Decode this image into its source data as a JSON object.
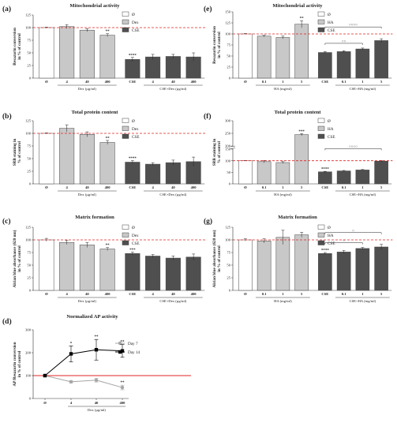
{
  "chart_data": [
    {
      "id": "a",
      "panel": "(a)",
      "type": "bar",
      "title": "Mitochondrial activity",
      "ylabel": [
        "Resazurin conversion",
        "in % of control"
      ],
      "yticks": [
        0,
        25,
        50,
        75,
        100,
        125
      ],
      "ylim": [
        0,
        125
      ],
      "reference_line": 100,
      "categories": [
        "Ø",
        "4",
        "40",
        "400",
        "CSE",
        "4",
        "40",
        "400"
      ],
      "values": [
        100,
        102,
        95,
        85,
        37,
        42,
        43,
        42
      ],
      "errors": [
        1,
        4,
        3,
        3,
        4,
        5,
        4,
        8
      ],
      "series_index": [
        0,
        1,
        1,
        1,
        2,
        2,
        2,
        2
      ],
      "annotations": [
        {
          "index": 3,
          "text": "**"
        },
        {
          "index": 4,
          "text": "****"
        }
      ],
      "groups": [
        {
          "label": "Dex (µg/ml)",
          "from": 1,
          "to": 3
        },
        {
          "label": "CSE+Dex (µg/ml)",
          "from": 5,
          "to": 7
        }
      ],
      "legend": [
        "Ø",
        "Dex",
        "CSE"
      ],
      "colors": [
        "#ffffff",
        "#c8c8c8",
        "#4f4f4f"
      ]
    },
    {
      "id": "b",
      "panel": "(b)",
      "type": "bar",
      "title": "Total protein content",
      "ylabel": [
        "SRB staining in",
        "% of control"
      ],
      "yticks": [
        0,
        25,
        50,
        75,
        100,
        125
      ],
      "ylim": [
        0,
        125
      ],
      "reference_line": 100,
      "categories": [
        "Ø",
        "4",
        "40",
        "400",
        "CSE",
        "4",
        "40",
        "400"
      ],
      "values": [
        100,
        110,
        98,
        82,
        43,
        39,
        42,
        44
      ],
      "errors": [
        1,
        7,
        5,
        4,
        3,
        3,
        5,
        9
      ],
      "series_index": [
        0,
        1,
        1,
        1,
        2,
        2,
        2,
        2
      ],
      "annotations": [
        {
          "index": 3,
          "text": "**"
        },
        {
          "index": 4,
          "text": "****"
        }
      ],
      "groups": [
        {
          "label": "Dex (µg/ml)",
          "from": 1,
          "to": 3
        },
        {
          "label": "CSE+Dex (µg/ml)",
          "from": 5,
          "to": 7
        }
      ],
      "legend": [
        "Ø",
        "Dex",
        "CSE"
      ],
      "colors": [
        "#ffffff",
        "#c8c8c8",
        "#4f4f4f"
      ]
    },
    {
      "id": "c",
      "panel": "(c)",
      "type": "bar",
      "title": "Matrix formation",
      "ylabel": [
        "Alcian blue absorbance (620 nm)",
        "in % of control"
      ],
      "yticks": [
        0,
        25,
        50,
        75,
        100,
        125
      ],
      "ylim": [
        0,
        125
      ],
      "reference_line": 100,
      "categories": [
        "Ø",
        "4",
        "40",
        "400",
        "CSE",
        "4",
        "40",
        "400"
      ],
      "values": [
        100,
        95,
        90,
        82,
        73,
        68,
        64,
        66
      ],
      "errors": [
        3,
        4,
        5,
        3,
        3,
        3,
        4,
        6
      ],
      "series_index": [
        0,
        1,
        1,
        1,
        2,
        2,
        2,
        2
      ],
      "annotations": [
        {
          "index": 3,
          "text": "**"
        },
        {
          "index": 4,
          "text": "***"
        }
      ],
      "groups": [
        {
          "label": "Dex (µg/ml)",
          "from": 1,
          "to": 3
        },
        {
          "label": "CSE+Dex (µg/ml)",
          "from": 5,
          "to": 7
        }
      ],
      "legend": [
        "Ø",
        "Dex",
        "CSE"
      ],
      "colors": [
        "#ffffff",
        "#c8c8c8",
        "#4f4f4f"
      ]
    },
    {
      "id": "e",
      "panel": "(e)",
      "type": "bar",
      "title": "Mitochondrial activity",
      "ylabel": [
        "Resazurin conversion",
        "in % of control"
      ],
      "yticks": [
        0,
        25,
        50,
        75,
        100,
        125,
        150
      ],
      "ylim": [
        0,
        150
      ],
      "reference_line": 100,
      "categories": [
        "Ø",
        "0.1",
        "1",
        "5",
        "CSE",
        "0.1",
        "1",
        "5"
      ],
      "values": [
        100,
        95,
        92,
        122,
        58,
        60,
        66,
        85
      ],
      "errors": [
        1,
        2,
        3,
        8,
        2,
        2,
        2,
        4
      ],
      "series_index": [
        0,
        1,
        1,
        1,
        2,
        2,
        2,
        2
      ],
      "annotations": [
        {
          "index": 3,
          "text": "**"
        }
      ],
      "brackets": [
        {
          "from": 4,
          "to": 7,
          "text": "○○○○"
        },
        {
          "from": 4,
          "to": 6,
          "text": "○○"
        }
      ],
      "groups": [
        {
          "label": "HA (mg/ml)",
          "from": 1,
          "to": 3
        },
        {
          "label": "CSE+HA (mg/ml)",
          "from": 5,
          "to": 7
        }
      ],
      "legend": [
        "Ø",
        "HA",
        "CSE"
      ],
      "colors": [
        "#ffffff",
        "#c8c8c8",
        "#4f4f4f"
      ]
    },
    {
      "id": "f",
      "panel": "(f)",
      "type": "bar",
      "title": "Total protein content",
      "ylabel": [
        "SRB staining in",
        "% of control"
      ],
      "yticks": [
        0,
        50,
        100,
        150,
        200,
        250,
        300
      ],
      "ylim": [
        0,
        300
      ],
      "broken_axis": [
        150,
        200
      ],
      "reference_line": 100,
      "categories": [
        "Ø",
        "0.1",
        "1",
        "5",
        "CSE",
        "0.1",
        "1",
        "5"
      ],
      "values": [
        100,
        96,
        92,
        245,
        52,
        56,
        60,
        98
      ],
      "errors": [
        1,
        5,
        4,
        4,
        2,
        2,
        2,
        3
      ],
      "series_index": [
        0,
        1,
        1,
        1,
        2,
        2,
        2,
        2
      ],
      "annotations": [
        {
          "index": 3,
          "text": "***"
        },
        {
          "index": 4,
          "text": "****"
        }
      ],
      "brackets": [
        {
          "from": 4,
          "to": 7,
          "text": "○○○○"
        }
      ],
      "groups": [
        {
          "label": "HA (mg/ml)",
          "from": 1,
          "to": 3
        },
        {
          "label": "CSE+HA (mg/ml)",
          "from": 5,
          "to": 7
        }
      ],
      "legend": [
        "Ø",
        "HA",
        "CSE"
      ],
      "colors": [
        "#ffffff",
        "#c8c8c8",
        "#4f4f4f"
      ]
    },
    {
      "id": "g",
      "panel": "(g)",
      "type": "bar",
      "title": "Matrix formation",
      "ylabel": [
        "Alcian blue absorbance (620 nm)",
        "in % of control"
      ],
      "yticks": [
        0,
        25,
        50,
        75,
        100,
        125
      ],
      "ylim": [
        0,
        125
      ],
      "reference_line": 100,
      "categories": [
        "Ø",
        "0.1",
        "1",
        "5",
        "CSE",
        "0.1",
        "1",
        "5"
      ],
      "values": [
        100,
        98,
        105,
        110,
        73,
        76,
        83,
        86
      ],
      "errors": [
        2,
        4,
        14,
        5,
        2,
        3,
        2,
        5
      ],
      "series_index": [
        0,
        1,
        1,
        1,
        2,
        2,
        2,
        2
      ],
      "annotations": [
        {
          "index": 4,
          "text": "****"
        }
      ],
      "brackets": [
        {
          "from": 4,
          "to": 7,
          "text": "○"
        },
        {
          "from": 4,
          "to": 6,
          "text": "○"
        }
      ],
      "groups": [
        {
          "label": "HA (mg/ml)",
          "from": 1,
          "to": 3
        },
        {
          "label": "CSE+HA (mg/ml)",
          "from": 5,
          "to": 7
        }
      ],
      "legend": [
        "Ø",
        "HA",
        "CSE"
      ],
      "colors": [
        "#ffffff",
        "#c8c8c8",
        "#4f4f4f"
      ]
    },
    {
      "id": "d",
      "panel": "(d)",
      "type": "line",
      "title": "Normalized AP activity",
      "ylabel": [
        "AP/Resazurin conversion",
        "in % of control"
      ],
      "yticks": [
        0,
        100,
        200,
        300
      ],
      "ylim": [
        0,
        300
      ],
      "reference_line": 100,
      "x": [
        "Ø",
        "4",
        "40",
        "400"
      ],
      "xlabel": "Dex (µg/ml)",
      "series": [
        {
          "name": "Day 7",
          "values": [
            100,
            73,
            80,
            48
          ],
          "errors": [
            3,
            5,
            8,
            10
          ],
          "color": "#a6a6a6",
          "annotations": [
            {
              "index": 3,
              "text": "**"
            }
          ]
        },
        {
          "name": "Day 14",
          "values": [
            100,
            195,
            213,
            208
          ],
          "errors": [
            3,
            35,
            45,
            28
          ],
          "color": "#000000",
          "annotations": [
            {
              "index": 1,
              "text": "*"
            },
            {
              "index": 2,
              "text": "**"
            },
            {
              "index": 3,
              "text": "**"
            }
          ]
        }
      ]
    }
  ]
}
